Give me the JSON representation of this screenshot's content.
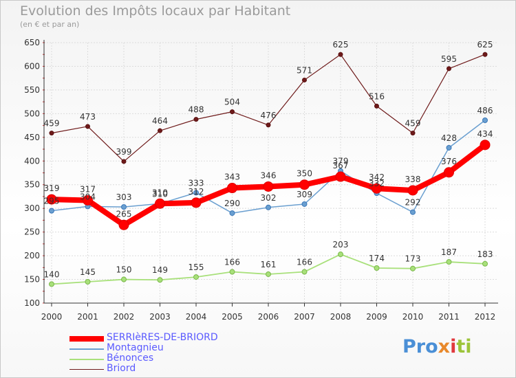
{
  "title": "Evolution des Impôts locaux par Habitant",
  "subtitle": "(en € et par an)",
  "logo": "Proxiti",
  "chart_data": {
    "type": "line",
    "x": [
      "2000",
      "2001",
      "2002",
      "2003",
      "2004",
      "2005",
      "2006",
      "2007",
      "2008",
      "2009",
      "2010",
      "2011",
      "2012"
    ],
    "ylim": [
      100,
      650
    ],
    "yticks": [
      100,
      150,
      200,
      250,
      300,
      350,
      400,
      450,
      500,
      550,
      600,
      650
    ],
    "grid": true,
    "legend": "bottom-left",
    "series": [
      {
        "name": "Briord",
        "color": "#6e1a1a",
        "values": [
          459,
          473,
          399,
          464,
          488,
          504,
          476,
          571,
          625,
          516,
          459,
          595,
          625
        ],
        "labels": [
          "459",
          "473",
          "399",
          "464",
          "488",
          "504",
          "476",
          "571",
          "625",
          "516",
          "459",
          "595",
          "625"
        ]
      },
      {
        "name": "Bénonces",
        "color": "#a8e07a",
        "values": [
          140,
          145,
          150,
          149,
          155,
          166,
          161,
          166,
          203,
          174,
          173,
          187,
          183
        ],
        "labels": [
          "140",
          "145",
          "150",
          "149",
          "155",
          "166",
          "161",
          "166",
          "203",
          "174",
          "173",
          "187",
          "183"
        ]
      },
      {
        "name": "Montagnieu",
        "color": "#6a9fd0",
        "values": [
          295,
          304,
          303,
          310,
          333,
          290,
          302,
          309,
          379,
          332,
          292,
          428,
          486
        ],
        "labels": [
          "295",
          "304",
          "303",
          "310",
          "333",
          "290",
          "302",
          "309",
          "379",
          "332",
          "292",
          "428",
          "486"
        ]
      },
      {
        "name": "SERRIèRES-DE-BRIORD",
        "color": "#ff0000",
        "values": [
          319,
          317,
          265,
          310,
          312,
          343,
          346,
          350,
          367,
          342,
          338,
          376,
          434
        ],
        "labels": [
          "319",
          "317",
          "265",
          "310",
          "312",
          "343",
          "346",
          "350",
          "367",
          "342",
          "338",
          "376",
          "434"
        ]
      }
    ]
  },
  "legend": [
    {
      "name": "SERRIèRES-DE-BRIORD",
      "color": "#ff0000",
      "text_color": "#5a5aff"
    },
    {
      "name": "Montagnieu",
      "color": "#6a9fd0",
      "text_color": "#5a5aff"
    },
    {
      "name": "Bénonces",
      "color": "#a8e07a",
      "text_color": "#5a5aff"
    },
    {
      "name": "Briord",
      "color": "#6e1a1a",
      "text_color": "#5a5aff"
    }
  ]
}
